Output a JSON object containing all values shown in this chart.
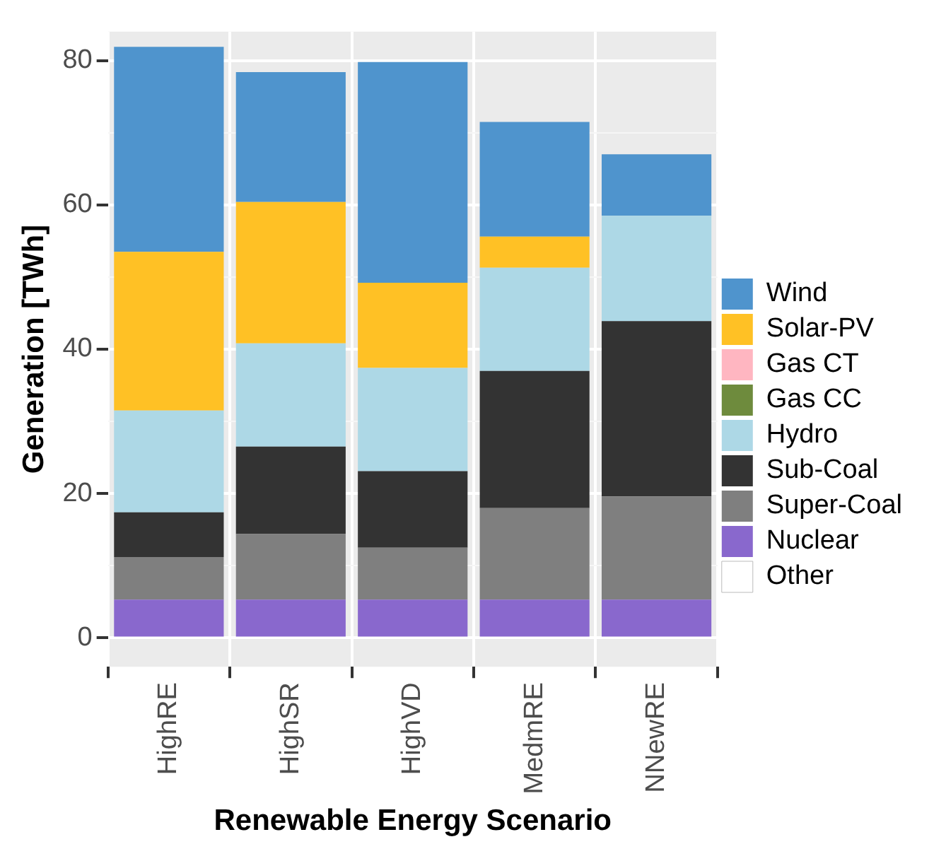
{
  "chart_data": {
    "type": "bar",
    "xlabel": "Renewable Energy Scenario",
    "ylabel": "Generation [TWh]",
    "categories": [
      "HighRE",
      "HighSR",
      "HighVD",
      "MedmRE",
      "NNewRE"
    ],
    "stacked": true,
    "legend": "right",
    "grid": true,
    "ylim": [
      -4,
      84
    ],
    "yticks": [
      0,
      {
        "value": 10,
        "label": null
      },
      20,
      {
        "value": 30,
        "label": null
      },
      40,
      {
        "value": 50,
        "label": null
      },
      60,
      {
        "value": 70,
        "label": null
      },
      80
    ],
    "series": [
      {
        "name": "Other",
        "color": "#ffffff",
        "values": [
          0,
          0,
          0,
          0,
          0
        ]
      },
      {
        "name": "Nuclear",
        "color": "#8968cd",
        "values": [
          5.3,
          5.3,
          5.3,
          5.3,
          5.3
        ]
      },
      {
        "name": "Super-Coal",
        "color": "#7f7f7f",
        "values": [
          5.9,
          9.1,
          7.2,
          12.7,
          14.3
        ]
      },
      {
        "name": "Sub-Coal",
        "color": "#333333",
        "values": [
          6.2,
          12.1,
          10.6,
          19.0,
          24.3
        ]
      },
      {
        "name": "Hydro",
        "color": "#add8e6",
        "values": [
          14.1,
          14.3,
          14.3,
          14.3,
          14.6
        ]
      },
      {
        "name": "Gas CC",
        "color": "#6e8b3d",
        "values": [
          0,
          0,
          0,
          0,
          0
        ]
      },
      {
        "name": "Gas CT",
        "color": "#ffb6c1",
        "values": [
          0,
          0,
          0,
          0,
          0
        ]
      },
      {
        "name": "Solar-PV",
        "color": "#ffc125",
        "values": [
          22.0,
          19.6,
          11.8,
          4.3,
          0
        ]
      },
      {
        "name": "Wind",
        "color": "#4f94cd",
        "values": [
          28.4,
          18.0,
          30.6,
          15.9,
          8.5
        ]
      }
    ]
  }
}
